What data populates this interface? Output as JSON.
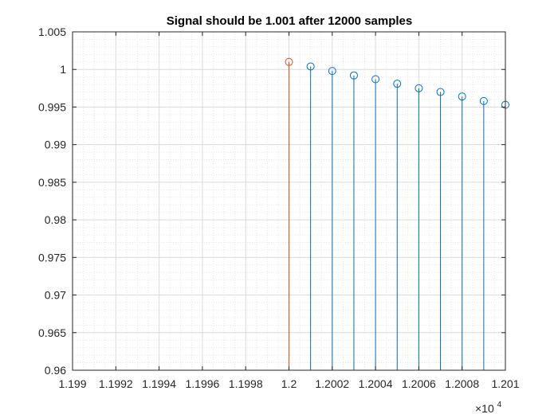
{
  "chart_data": {
    "type": "stem",
    "title": "Signal should be 1.001 after 12000 samples",
    "xlabel": "",
    "ylabel": "",
    "xlim": [
      11990,
      12010
    ],
    "ylim": [
      0.96,
      1.005
    ],
    "x_tick_values": [
      11990,
      11992,
      11994,
      11996,
      11998,
      12000,
      12002,
      12004,
      12006,
      12008,
      12010
    ],
    "x_tick_labels": [
      "1.199",
      "1.1992",
      "1.1994",
      "1.1996",
      "1.1998",
      "1.2",
      "1.2002",
      "1.2004",
      "1.2006",
      "1.2008",
      "1.201"
    ],
    "x_exponent_label": "×10",
    "x_exponent_power": "4",
    "y_tick_values": [
      0.96,
      0.965,
      0.97,
      0.975,
      0.98,
      0.985,
      0.99,
      0.995,
      1.0,
      1.005
    ],
    "y_tick_labels": [
      "0.96",
      "0.965",
      "0.97",
      "0.975",
      "0.98",
      "0.985",
      "0.99",
      "0.995",
      "1",
      "1.005"
    ],
    "grid": true,
    "minor_grid": true,
    "baseline": 0.96,
    "series": [
      {
        "color": "#D95319",
        "points": [
          [
            12000,
            1.001
          ]
        ]
      },
      {
        "color": "#0072BD",
        "points": [
          [
            12001,
            1.0004
          ],
          [
            12002,
            0.9998
          ],
          [
            12003,
            0.9992
          ],
          [
            12004,
            0.9987
          ],
          [
            12005,
            0.9981
          ],
          [
            12006,
            0.9975
          ],
          [
            12007,
            0.997
          ],
          [
            12008,
            0.9964
          ],
          [
            12009,
            0.9958
          ],
          [
            12010,
            0.9953
          ]
        ]
      }
    ]
  }
}
